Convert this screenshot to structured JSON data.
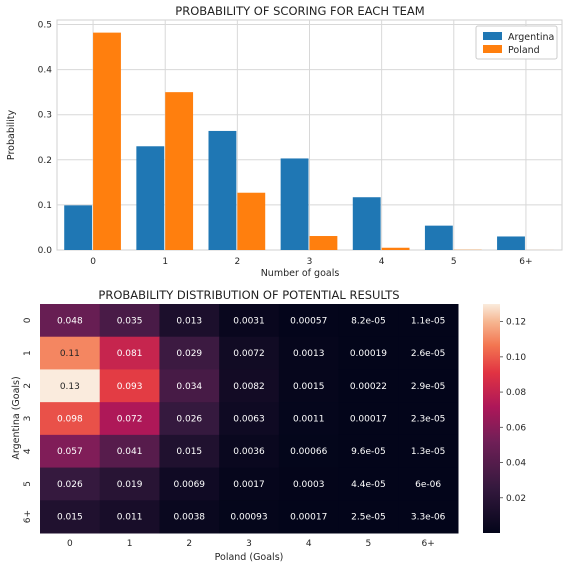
{
  "chart_data": [
    {
      "type": "bar",
      "title": "PROBABILITY OF SCORING FOR EACH TEAM",
      "xlabel": "Number of goals",
      "ylabel": "Probability",
      "categories": [
        "0",
        "1",
        "2",
        "3",
        "4",
        "5",
        "6+"
      ],
      "ylim": [
        0,
        0.51
      ],
      "yticks": [
        "0.0",
        "0.1",
        "0.2",
        "0.3",
        "0.4",
        "0.5"
      ],
      "grid": true,
      "legend_position": "top-right",
      "series": [
        {
          "name": "Argentina",
          "color": "#1f77b4",
          "values": [
            0.099,
            0.23,
            0.264,
            0.203,
            0.117,
            0.054,
            0.03
          ]
        },
        {
          "name": "Poland",
          "color": "#ff7f0e",
          "values": [
            0.482,
            0.35,
            0.127,
            0.031,
            0.005,
            0.0005,
            0.0001
          ]
        }
      ]
    },
    {
      "type": "heatmap",
      "title": "PROBABILITY DISTRIBUTION OF POTENTIAL RESULTS",
      "xlabel": "Poland (Goals)",
      "ylabel": "Argentina (Goals)",
      "x_categories": [
        "0",
        "1",
        "2",
        "3",
        "4",
        "5",
        "6+"
      ],
      "y_categories": [
        "0",
        "1",
        "2",
        "3",
        "4",
        "5",
        "6+"
      ],
      "values": [
        [
          0.048,
          0.035,
          0.013,
          0.0031,
          0.00057,
          8.2e-05,
          1.1e-05
        ],
        [
          0.11,
          0.081,
          0.029,
          0.0072,
          0.0013,
          0.00019,
          2.6e-05
        ],
        [
          0.13,
          0.093,
          0.034,
          0.0082,
          0.0015,
          0.00022,
          2.9e-05
        ],
        [
          0.098,
          0.072,
          0.026,
          0.0063,
          0.0011,
          0.00017,
          2.3e-05
        ],
        [
          0.057,
          0.041,
          0.015,
          0.0036,
          0.00066,
          9.6e-05,
          1.3e-05
        ],
        [
          0.026,
          0.019,
          0.0069,
          0.0017,
          0.0003,
          4.4e-05,
          6e-06
        ],
        [
          0.015,
          0.011,
          0.0038,
          0.00093,
          0.00017,
          2.5e-05,
          3.3e-06
        ]
      ],
      "labels": [
        [
          "0.048",
          "0.035",
          "0.013",
          "0.0031",
          "0.00057",
          "8.2e-05",
          "1.1e-05"
        ],
        [
          "0.11",
          "0.081",
          "0.029",
          "0.0072",
          "0.0013",
          "0.00019",
          "2.6e-05"
        ],
        [
          "0.13",
          "0.093",
          "0.034",
          "0.0082",
          "0.0015",
          "0.00022",
          "2.9e-05"
        ],
        [
          "0.098",
          "0.072",
          "0.026",
          "0.0063",
          "0.0011",
          "0.00017",
          "2.3e-05"
        ],
        [
          "0.057",
          "0.041",
          "0.015",
          "0.0036",
          "0.00066",
          "9.6e-05",
          "1.3e-05"
        ],
        [
          "0.026",
          "0.019",
          "0.0069",
          "0.0017",
          "0.0003",
          "4.4e-05",
          "6e-06"
        ],
        [
          "0.015",
          "0.011",
          "0.0038",
          "0.00093",
          "0.00017",
          "2.5e-05",
          "3.3e-06"
        ]
      ],
      "colorbar": {
        "colormap": "rocket",
        "range": [
          0,
          0.13
        ],
        "ticks": [
          "0.02",
          "0.04",
          "0.06",
          "0.08",
          "0.10",
          "0.12"
        ]
      }
    }
  ]
}
